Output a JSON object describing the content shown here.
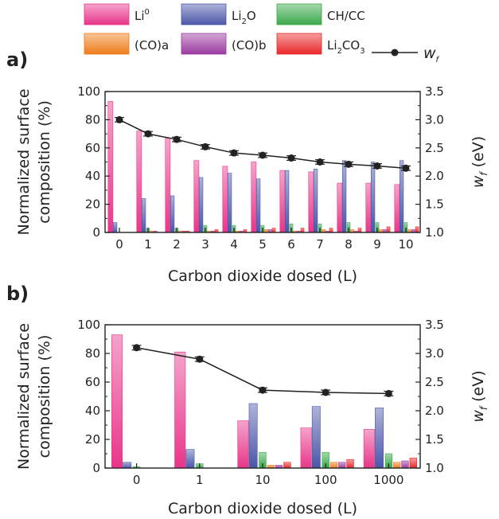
{
  "legend": [
    {
      "key": "li0",
      "base": "Li",
      "sup": "0",
      "sub": "",
      "tail": "",
      "color": "#e8358a"
    },
    {
      "key": "li2o",
      "base": "Li",
      "sup": "",
      "sub": "2",
      "tail": "O",
      "color": "#4a57a8"
    },
    {
      "key": "chcc",
      "base": "CH/CC",
      "sup": "",
      "sub": "",
      "tail": "",
      "color": "#3aa84a"
    },
    {
      "key": "coa",
      "base": "(CO)a",
      "sup": "",
      "sub": "",
      "tail": "",
      "color": "#f07c1a"
    },
    {
      "key": "cob",
      "base": "(CO)b",
      "sup": "",
      "sub": "",
      "tail": "",
      "color": "#9b3aa0"
    },
    {
      "key": "li2co3",
      "base": "Li",
      "sup": "",
      "sub": "2",
      "tail": "CO",
      "tail_sub": "3",
      "color": "#e8282a"
    }
  ],
  "wf_legend": {
    "base": "w",
    "sub": "f",
    "color": "#222222"
  },
  "panels": [
    {
      "label": "a)"
    },
    {
      "label": "b)"
    }
  ],
  "chart_data": [
    {
      "type": "bar",
      "panel": "a)",
      "categories": [
        "0",
        "1",
        "2",
        "3",
        "4",
        "5",
        "6",
        "7",
        "8",
        "9",
        "10"
      ],
      "series": [
        {
          "name": "Li0",
          "values": [
            93,
            72,
            67,
            51,
            47,
            50,
            44,
            43,
            35,
            35,
            34
          ]
        },
        {
          "name": "Li2O",
          "values": [
            7,
            24,
            26,
            39,
            42,
            38,
            44,
            45,
            51,
            50,
            51
          ]
        },
        {
          "name": "CH/CC",
          "values": [
            0,
            3,
            3,
            5,
            5,
            5,
            6,
            6,
            7,
            7,
            7
          ]
        },
        {
          "name": "(CO)a",
          "values": [
            0,
            1,
            1,
            1,
            1,
            2,
            1,
            2,
            2,
            2,
            2
          ]
        },
        {
          "name": "(CO)b",
          "values": [
            0,
            1,
            1,
            1,
            1,
            2,
            1,
            1,
            1,
            2,
            2
          ]
        },
        {
          "name": "Li2CO3",
          "values": [
            0,
            0,
            1,
            2,
            2,
            3,
            3,
            3,
            3,
            4,
            4
          ]
        }
      ],
      "line": {
        "name": "wf",
        "axis": "right",
        "values": [
          3.0,
          2.75,
          2.65,
          2.52,
          2.41,
          2.37,
          2.32,
          2.25,
          2.21,
          2.18,
          2.14
        ],
        "error": [
          0.04,
          0.04,
          0.04,
          0.04,
          0.04,
          0.04,
          0.04,
          0.04,
          0.04,
          0.04,
          0.04
        ]
      },
      "xlabel": "Carbon dioxide dosed (L)",
      "ylabel": [
        "Normalized surface",
        "composition (%)"
      ],
      "ylim": [
        0,
        100
      ],
      "yticks": [
        "0",
        "20",
        "40",
        "60",
        "80",
        "100"
      ],
      "y2lim": [
        1.0,
        3.5
      ],
      "y2ticks": [
        "1.0",
        "1.5",
        "2.0",
        "2.5",
        "3.0",
        "3.5"
      ],
      "y2label": {
        "base": "w",
        "sub": "f",
        "tail": " (eV)"
      }
    },
    {
      "type": "bar",
      "panel": "b)",
      "categories": [
        "0",
        "1",
        "10",
        "100",
        "1000"
      ],
      "series": [
        {
          "name": "Li0",
          "values": [
            93,
            81,
            33,
            28,
            27
          ]
        },
        {
          "name": "Li2O",
          "values": [
            4,
            13,
            45,
            43,
            42
          ]
        },
        {
          "name": "CH/CC",
          "values": [
            1,
            3,
            11,
            11,
            10
          ]
        },
        {
          "name": "(CO)a",
          "values": [
            0,
            0,
            2,
            4,
            4
          ]
        },
        {
          "name": "(CO)b",
          "values": [
            0,
            0,
            2,
            4,
            5
          ]
        },
        {
          "name": "Li2CO3",
          "values": [
            0,
            0,
            4,
            6,
            7
          ]
        }
      ],
      "line": {
        "name": "wf",
        "axis": "right",
        "values": [
          3.1,
          2.9,
          2.36,
          2.32,
          2.3
        ],
        "error": [
          0.04,
          0.04,
          0.04,
          0.04,
          0.04
        ]
      },
      "xlabel": "Carbon dioxide dosed (L)",
      "ylabel": [
        "Normalized surface",
        "composition (%)"
      ],
      "ylim": [
        0,
        100
      ],
      "yticks": [
        "0",
        "20",
        "40",
        "60",
        "80",
        "100"
      ],
      "y2lim": [
        1.0,
        3.5
      ],
      "y2ticks": [
        "1.0",
        "1.5",
        "2.0",
        "2.5",
        "3.0",
        "3.5"
      ],
      "y2label": {
        "base": "w",
        "sub": "f",
        "tail": " (eV)"
      }
    }
  ]
}
